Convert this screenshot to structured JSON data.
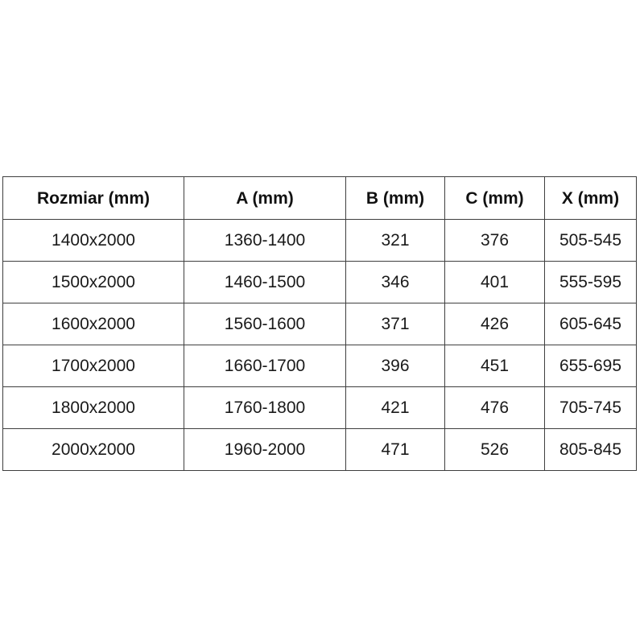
{
  "page": {
    "background": "#ffffff",
    "text_color": "#1a1a1a",
    "grid_color": "#3f3f3f"
  },
  "table": {
    "columns": [
      "Rozmiar (mm)",
      "A (mm)",
      "B (mm)",
      "C (mm)",
      "X (mm)"
    ],
    "rows": [
      {
        "cells": [
          "1400x2000",
          "1360-1400",
          "321",
          "376",
          "505-545"
        ]
      },
      {
        "cells": [
          "1500x2000",
          "1460-1500",
          "346",
          "401",
          "555-595"
        ]
      },
      {
        "cells": [
          "1600x2000",
          "1560-1600",
          "371",
          "426",
          "605-645"
        ]
      },
      {
        "cells": [
          "1700x2000",
          "1660-1700",
          "396",
          "451",
          "655-695"
        ]
      },
      {
        "cells": [
          "1800x2000",
          "1760-1800",
          "421",
          "476",
          "705-745"
        ]
      },
      {
        "cells": [
          "2000x2000",
          "1960-2000",
          "471",
          "526",
          "805-845"
        ]
      }
    ]
  },
  "chart_data": {
    "type": "table",
    "title": "",
    "columns": [
      "Rozmiar (mm)",
      "A (mm)",
      "B (mm)",
      "C (mm)",
      "X (mm)"
    ],
    "rows": [
      [
        "1400x2000",
        "1360-1400",
        321,
        376,
        "505-545"
      ],
      [
        "1500x2000",
        "1460-1500",
        346,
        401,
        "555-595"
      ],
      [
        "1600x2000",
        "1560-1600",
        371,
        426,
        "605-645"
      ],
      [
        "1700x2000",
        "1660-1700",
        396,
        451,
        "655-695"
      ],
      [
        "1800x2000",
        "1760-1800",
        421,
        476,
        "705-745"
      ],
      [
        "2000x2000",
        "1960-2000",
        471,
        526,
        "805-845"
      ]
    ]
  }
}
